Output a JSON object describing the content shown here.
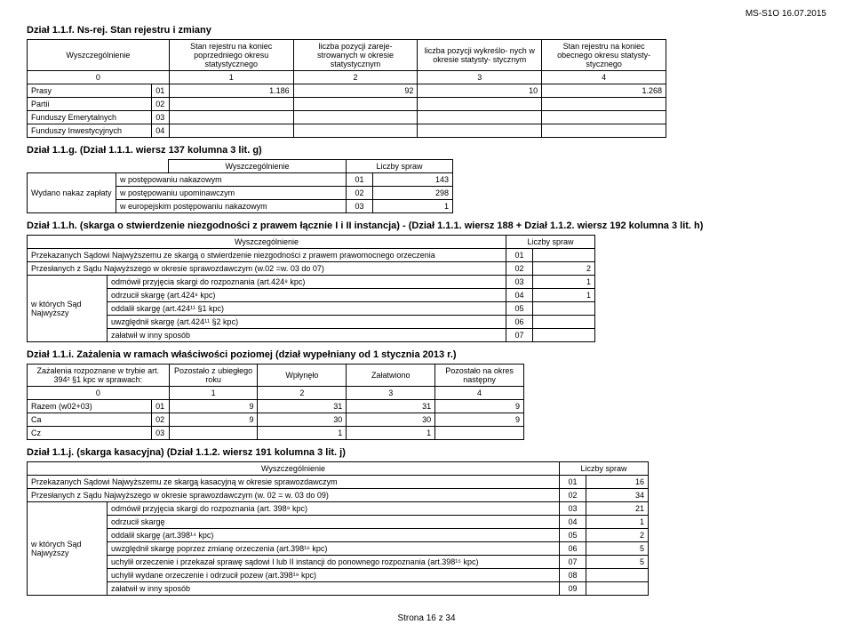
{
  "header_right": "MS-S1O 16.07.2015",
  "section_f": {
    "title": "Dział 1.1.f.  Ns-rej. Stan rejestru i zmiany",
    "cols": {
      "c0": "Wyszczególnienie",
      "c1": "Stan rejestru na koniec poprzedniego okresu statystycznego",
      "c2": "liczba pozycji zareje- strowanych w okresie statystycznym",
      "c3": "liczba pozycji wykreślo- nych w okresie statysty- stycznym",
      "c4": "Stan rejestru na koniec obecnego okresu statysty- stycznego"
    },
    "colnums": {
      "n0": "0",
      "n1": "1",
      "n2": "2",
      "n3": "3",
      "n4": "4"
    },
    "rows": [
      {
        "label": "Prasy",
        "code": "01",
        "v1": "1.186",
        "v2": "92",
        "v3": "10",
        "v4": "1.268"
      },
      {
        "label": "Partii",
        "code": "02",
        "v1": "",
        "v2": "",
        "v3": "",
        "v4": ""
      },
      {
        "label": "Funduszy Emerytalnych",
        "code": "03",
        "v1": "",
        "v2": "",
        "v3": "",
        "v4": ""
      },
      {
        "label": "Funduszy Inwestycyjnych",
        "code": "04",
        "v1": "",
        "v2": "",
        "v3": "",
        "v4": ""
      }
    ]
  },
  "section_g": {
    "title": "Dział 1.1.g. (Dział 1.1.1. wiersz 137 kolumna 3 lit. g)",
    "col0": "Wyszczególnienie",
    "col1": "Liczby spraw",
    "rowhead": "Wydano nakaz zapłaty",
    "rows": [
      {
        "label": "w postępowaniu nakazowym",
        "code": "01",
        "val": "143"
      },
      {
        "label": "w postępowaniu upominawczym",
        "code": "02",
        "val": "298"
      },
      {
        "label": "w europejskim postępowaniu nakazowym",
        "code": "03",
        "val": "1"
      }
    ]
  },
  "section_h": {
    "title": "Dział 1.1.h. (skarga o stwierdzenie niezgodności z prawem łącznie I i II instancja) - (Dział 1.1.1. wiersz 188 + Dział 1.1.2. wiersz 192 kolumna 3 lit. h)",
    "col0": "Wyszczególnienie",
    "col1": "Liczby spraw",
    "r1": {
      "label": "Przekazanych Sądowi Najwyższemu ze skargą o stwierdzenie niezgodności z prawem prawomocnego orzeczenia",
      "code": "01",
      "val": ""
    },
    "r2": {
      "label": "Przesłanych z Sądu Najwyższego w okresie sprawozdawczym (w.02 =w. 03 do 07)",
      "code": "02",
      "val": "2"
    },
    "grouplabel": "w których Sąd Najwyższy",
    "grows": [
      {
        "label": "odmówił przyjęcia skargi do rozpoznania (art.424⁸ kpc)",
        "code": "03",
        "val": "1"
      },
      {
        "label": "odrzucił skargę (art.424⁸ kpc)",
        "code": "04",
        "val": "1"
      },
      {
        "label": "oddalił skargę (art.424¹¹ §1 kpc)",
        "code": "05",
        "val": ""
      },
      {
        "label": "uwzględnił skargę (art.424¹¹ §2 kpc)",
        "code": "06",
        "val": ""
      },
      {
        "label": "załatwił w inny sposób",
        "code": "07",
        "val": ""
      }
    ]
  },
  "section_i": {
    "title": "Dział 1.1.i. Zażalenia w ramach właściwości poziomej (dział wypełniany od 1 stycznia 2013 r.)",
    "cols": {
      "c0": "Zażalenia rozpoznane w trybie art. 394² §1 kpc  w sprawach:",
      "c1": "Pozostało z ubiegłego roku",
      "c2": "Wpłynęło",
      "c3": "Załatwiono",
      "c4": "Pozostało na okres następny"
    },
    "colnums": {
      "n0": "0",
      "n1": "1",
      "n2": "2",
      "n3": "3",
      "n4": "4"
    },
    "rows": [
      {
        "label": "Razem (w02+03)",
        "code": "01",
        "v1": "9",
        "v2": "31",
        "v3": "31",
        "v4": "9"
      },
      {
        "label": "Ca",
        "code": "02",
        "v1": "9",
        "v2": "30",
        "v3": "30",
        "v4": "9"
      },
      {
        "label": "Cz",
        "code": "03",
        "v1": "",
        "v2": "1",
        "v3": "1",
        "v4": ""
      }
    ]
  },
  "section_j": {
    "title": "Dział 1.1.j. (skarga kasacyjna) (Dział 1.1.2.  wiersz 191 kolumna 3 lit. j)",
    "col0": "Wyszczególnienie",
    "col1": "Liczby spraw",
    "r1": {
      "label": "Przekazanych Sądowi Najwyższemu ze skargą kasacyjną w okresie sprawozdawczym",
      "code": "01",
      "val": "16"
    },
    "r2": {
      "label": "Przesłanych z Sądu Najwyższego w okresie sprawozdawczym (w. 02 = w. 03 do 09)",
      "code": "02",
      "val": "34"
    },
    "grouplabel": "w których Sąd Najwyższy",
    "grows": [
      {
        "label": "odmówił przyjęcia skargi do rozpoznania (art. 398⁹ kpc)",
        "code": "03",
        "val": "21"
      },
      {
        "label": "odrzucił skargę",
        "code": "04",
        "val": "1"
      },
      {
        "label": "oddalił skargę (art.398¹⁴ kpc)",
        "code": "05",
        "val": "2"
      },
      {
        "label": "uwzględnił skargę poprzez zmianę orzeczenia (art.398¹⁶ kpc)",
        "code": "06",
        "val": "5"
      },
      {
        "label": "uchylił orzeczenie i przekazał sprawę sądowi I lub II instancji do ponownego rozpoznania (art.398¹⁵ kpc)",
        "code": "07",
        "val": "5"
      },
      {
        "label": "uchylił wydane orzeczenie i odrzucił pozew (art.398¹⁹ kpc)",
        "code": "08",
        "val": ""
      },
      {
        "label": "załatwił w inny sposób",
        "code": "09",
        "val": ""
      }
    ]
  },
  "footer": "Strona 16 z 34"
}
